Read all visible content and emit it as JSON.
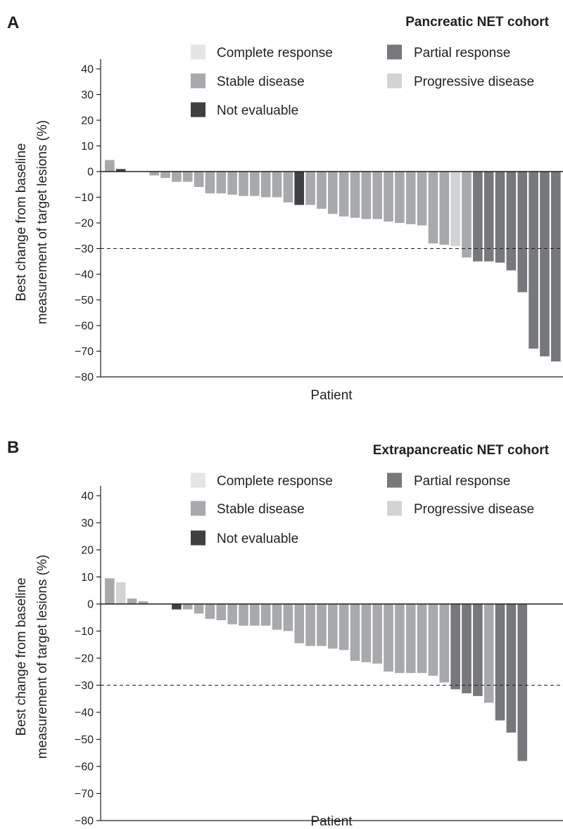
{
  "chart_data": [
    {
      "type": "bar",
      "panel_label": "A",
      "title": "Pancreatic NET cohort",
      "xlabel": "Patient",
      "ylabel_lines": [
        "Best change from baseline",
        "measurement of target lesions (%)"
      ],
      "ylim": [
        -80,
        40
      ],
      "yticks": [
        40,
        30,
        20,
        10,
        0,
        -10,
        -20,
        -30,
        -40,
        -50,
        -60,
        -70,
        -80
      ],
      "ytick_labels": [
        "40",
        "30",
        "20",
        "10",
        "0",
        "−10",
        "−20",
        "−30",
        "−40",
        "−50",
        "−60",
        "−70",
        "−80"
      ],
      "reference_line": -30,
      "legend": [
        {
          "key": "CR",
          "label": "Complete response",
          "color": "#e5e5e6"
        },
        {
          "key": "PR",
          "label": "Partial response",
          "color": "#77787b"
        },
        {
          "key": "SD",
          "label": "Stable disease",
          "color": "#a7a9ac"
        },
        {
          "key": "PD",
          "label": "Progressive disease",
          "color": "#d1d3d4"
        },
        {
          "key": "NE",
          "label": "Not evaluable",
          "color": "#3f4041"
        }
      ],
      "values": [
        4.5,
        1.0,
        0,
        0,
        -1.5,
        -2.5,
        -4,
        -4,
        -6,
        -8.5,
        -8.5,
        -9,
        -9.5,
        -9.5,
        -10,
        -10,
        -12,
        -13,
        -13,
        -14.5,
        -16.5,
        -17.5,
        -18,
        -18.5,
        -18.5,
        -19.5,
        -20,
        -20.5,
        -21,
        -28,
        -28.5,
        -29,
        -33.5,
        -35,
        -35,
        -35.5,
        -38.5,
        -47,
        -69,
        -72,
        -74
      ],
      "categories": [
        "SD",
        "NE",
        "SD",
        "SD",
        "SD",
        "SD",
        "SD",
        "SD",
        "SD",
        "SD",
        "SD",
        "SD",
        "SD",
        "SD",
        "SD",
        "SD",
        "SD",
        "NE",
        "SD",
        "SD",
        "SD",
        "SD",
        "SD",
        "SD",
        "SD",
        "SD",
        "SD",
        "SD",
        "SD",
        "SD",
        "SD",
        "PD",
        "SD",
        "PR",
        "PR",
        "PR",
        "PR",
        "PR",
        "PR",
        "PR",
        "PR"
      ]
    },
    {
      "type": "bar",
      "panel_label": "B",
      "title": "Extrapancreatic NET cohort",
      "xlabel": "Patient",
      "ylabel_lines": [
        "Best change from baseline",
        "measurement of target lesions (%)"
      ],
      "ylim": [
        -80,
        40
      ],
      "yticks": [
        40,
        30,
        20,
        10,
        0,
        -10,
        -20,
        -30,
        -40,
        -50,
        -60,
        -70,
        -80
      ],
      "ytick_labels": [
        "40",
        "30",
        "20",
        "10",
        "0",
        "−10",
        "−20",
        "−30",
        "−40",
        "−50",
        "−60",
        "−70",
        "−80"
      ],
      "reference_line": -30,
      "legend": [
        {
          "key": "CR",
          "label": "Complete response",
          "color": "#e5e5e6"
        },
        {
          "key": "PR",
          "label": "Partial response",
          "color": "#77787b"
        },
        {
          "key": "SD",
          "label": "Stable disease",
          "color": "#a7a9ac"
        },
        {
          "key": "PD",
          "label": "Progressive disease",
          "color": "#d1d3d4"
        },
        {
          "key": "NE",
          "label": "Not evaluable",
          "color": "#3f4041"
        }
      ],
      "values": [
        9.5,
        8,
        2,
        1,
        0,
        0,
        -2,
        -2,
        -3.5,
        -5.5,
        -6,
        -7.5,
        -8,
        -8,
        -8,
        -9.5,
        -10,
        -14.5,
        -15.5,
        -15.5,
        -16.5,
        -17,
        -21,
        -21.5,
        -22,
        -25,
        -25.5,
        -25.5,
        -25.5,
        -26.5,
        -29,
        -31.5,
        -33,
        -34,
        -36.5,
        -43,
        -47.5,
        -58
      ],
      "categories": [
        "SD",
        "PD",
        "SD",
        "SD",
        "SD",
        "SD",
        "NE",
        "SD",
        "SD",
        "SD",
        "SD",
        "SD",
        "SD",
        "SD",
        "SD",
        "SD",
        "SD",
        "SD",
        "SD",
        "SD",
        "SD",
        "SD",
        "SD",
        "SD",
        "SD",
        "SD",
        "SD",
        "SD",
        "SD",
        "SD",
        "SD",
        "PR",
        "PR",
        "PR",
        "SD",
        "PR",
        "PR",
        "PR"
      ]
    }
  ]
}
